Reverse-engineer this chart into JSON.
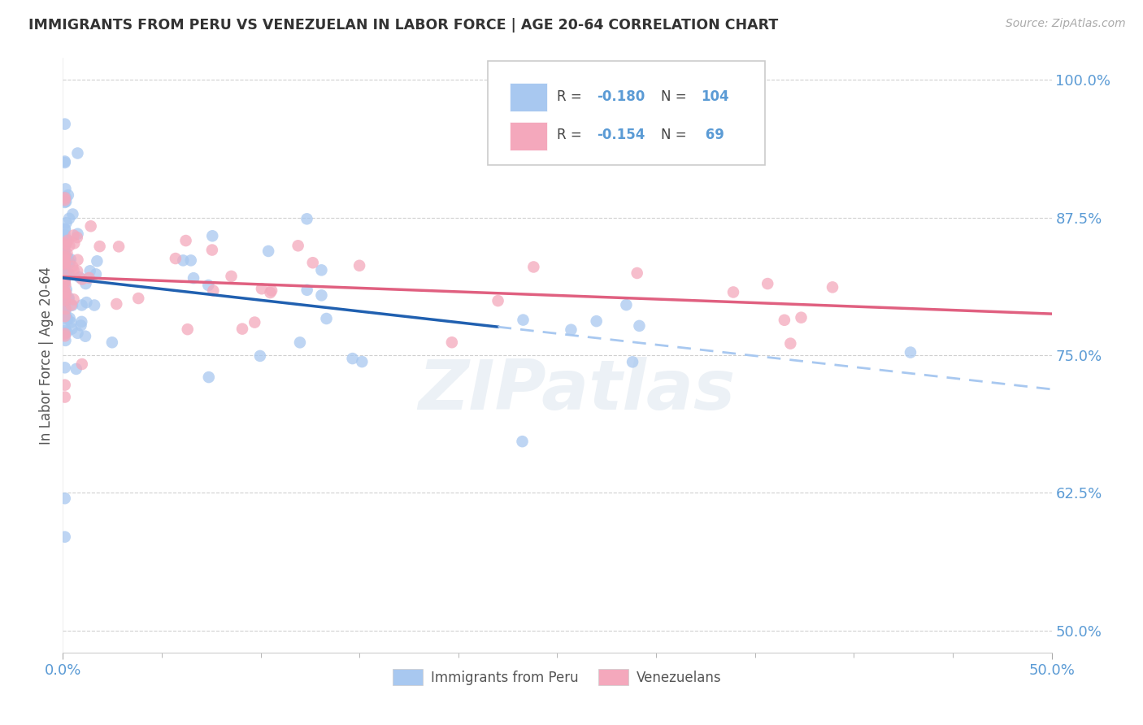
{
  "title": "IMMIGRANTS FROM PERU VS VENEZUELAN IN LABOR FORCE | AGE 20-64 CORRELATION CHART",
  "source": "Source: ZipAtlas.com",
  "ylabel": "In Labor Force | Age 20-64",
  "xlim": [
    0.0,
    0.5
  ],
  "ylim": [
    0.48,
    1.02
  ],
  "yticks": [
    0.5,
    0.625,
    0.75,
    0.875,
    1.0
  ],
  "ytick_labels": [
    "50.0%",
    "62.5%",
    "75.0%",
    "87.5%",
    "100.0%"
  ],
  "xtick_left_label": "0.0%",
  "xtick_right_label": "50.0%",
  "peru_color": "#a8c8f0",
  "venezuela_color": "#f4a8bc",
  "regression_peru_solid_color": "#2060b0",
  "regression_peru_dashed_color": "#a8c8f0",
  "regression_venezuela_color": "#e06080",
  "watermark": "ZIPatlas",
  "background_color": "#ffffff",
  "grid_color": "#d0d0d0",
  "peru_R": -0.18,
  "peru_N": 104,
  "venezuela_R": -0.154,
  "venezuela_N": 69,
  "tick_color": "#5b9bd5",
  "title_color": "#333333",
  "source_color": "#aaaaaa"
}
